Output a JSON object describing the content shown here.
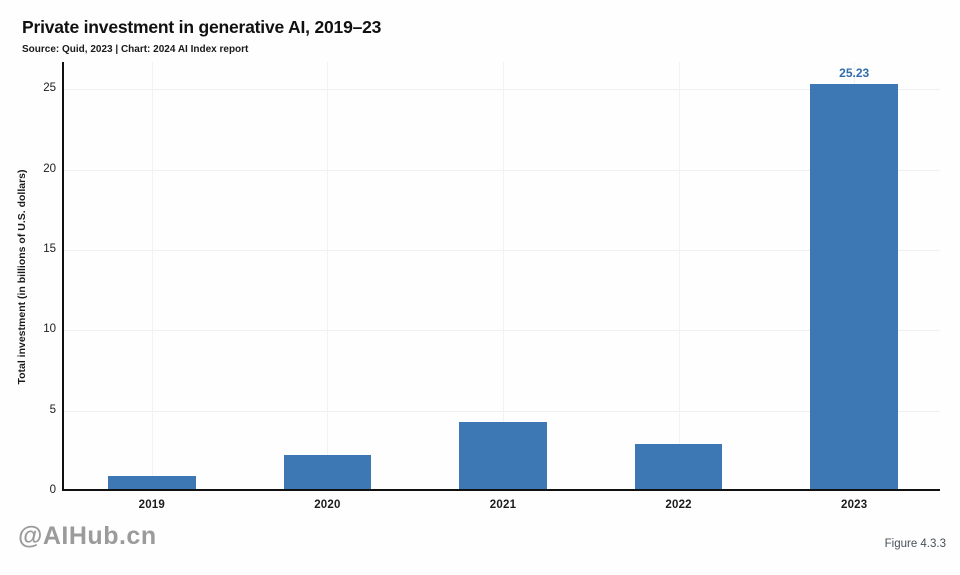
{
  "header": {
    "title": "Private investment in generative AI, 2019–23",
    "subtitle": "Source: Quid, 2023 | Chart: 2024 AI Index report"
  },
  "watermark": "@AIHub.cn",
  "figure_label": "Figure 4.3.3",
  "colors": {
    "bar": "#3d78b5",
    "value_label": "#2f6dae",
    "axis": "#111111",
    "grid": "#f0f0f0",
    "text": "#1c1c1c",
    "watermark": "#9b9b9b",
    "figure_label": "#46505a"
  },
  "chart_data": {
    "type": "bar",
    "title": "Private investment in generative AI, 2019–23",
    "categories": [
      "2019",
      "2020",
      "2021",
      "2022",
      "2023"
    ],
    "values": [
      0.8,
      2.1,
      4.2,
      2.8,
      25.23
    ],
    "bar_labels": [
      "",
      "",
      "",
      "",
      "25.23"
    ],
    "xlabel": "",
    "ylabel": "Total investment (in billions of U.S. dollars)",
    "yticks": [
      0,
      5,
      10,
      15,
      20,
      25
    ],
    "ylim": [
      0,
      26.7
    ],
    "grid": true,
    "legend_position": "none"
  }
}
